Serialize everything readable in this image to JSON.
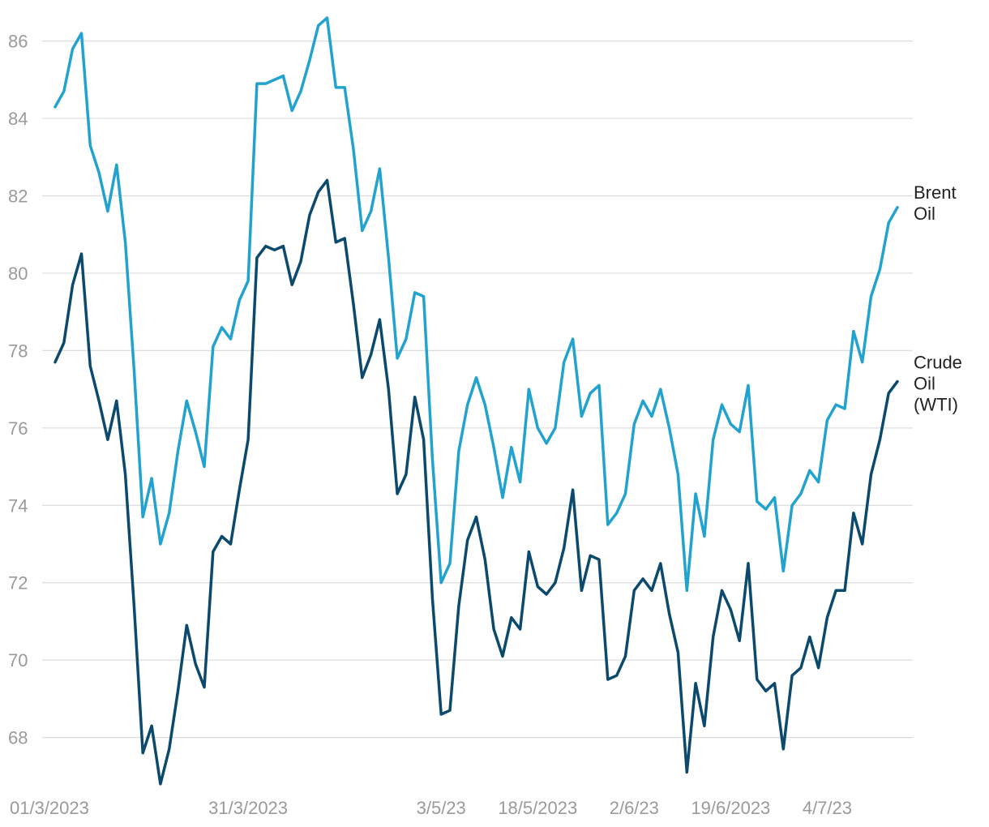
{
  "chart_data": {
    "type": "line",
    "title": "",
    "xlabel": "",
    "ylabel": "",
    "ylim": [
      66.8,
      86.8
    ],
    "yticks": [
      68,
      70,
      72,
      74,
      76,
      78,
      80,
      82,
      84,
      86
    ],
    "grid": "horizontal",
    "legend": "inline-right",
    "x_ticks": [
      {
        "index": 0,
        "label": "01/3/2023"
      },
      {
        "index": 22,
        "label": "31/3/2023"
      },
      {
        "index": 44,
        "label": "3/5/23"
      },
      {
        "index": 55,
        "label": "18/5/2023"
      },
      {
        "index": 66,
        "label": "2/6/23"
      },
      {
        "index": 77,
        "label": "19/6/2023"
      },
      {
        "index": 88,
        "label": "4/7/23"
      }
    ],
    "series": [
      {
        "name": "Brent Oil",
        "label_lines": [
          "Brent",
          "Oil"
        ],
        "color": "#22a3cf",
        "values": [
          84.3,
          84.7,
          85.8,
          86.2,
          83.3,
          82.6,
          81.6,
          82.8,
          80.8,
          77.5,
          73.7,
          74.7,
          73.0,
          73.8,
          75.4,
          76.7,
          75.9,
          75.0,
          78.1,
          78.6,
          78.3,
          79.3,
          79.8,
          84.9,
          84.9,
          85.0,
          85.1,
          84.2,
          84.7,
          85.5,
          86.4,
          86.6,
          84.8,
          84.8,
          83.2,
          81.1,
          81.6,
          82.7,
          80.4,
          77.8,
          78.3,
          79.5,
          79.4,
          75.2,
          72.0,
          72.5,
          75.4,
          76.6,
          77.3,
          76.6,
          75.5,
          74.2,
          75.5,
          74.6,
          77.0,
          76.0,
          75.6,
          76.0,
          77.7,
          78.3,
          76.3,
          76.9,
          77.1,
          73.5,
          73.8,
          74.3,
          76.1,
          76.7,
          76.3,
          77.0,
          76.0,
          74.8,
          71.8,
          74.3,
          73.2,
          75.7,
          76.6,
          76.1,
          75.9,
          77.1,
          74.1,
          73.9,
          74.2,
          72.3,
          74.0,
          74.3,
          74.9,
          74.6,
          76.2,
          76.6,
          76.5,
          78.5,
          77.7,
          79.4,
          80.1,
          81.3,
          81.7
        ]
      },
      {
        "name": "Crude Oil (WTI)",
        "label_lines": [
          "Crude",
          "Oil",
          "(WTI)"
        ],
        "color": "#0b4a6c",
        "values": [
          77.7,
          78.2,
          79.7,
          80.5,
          77.6,
          76.7,
          75.7,
          76.7,
          74.8,
          71.4,
          67.6,
          68.3,
          66.8,
          67.7,
          69.2,
          70.9,
          69.9,
          69.3,
          72.8,
          73.2,
          73.0,
          74.4,
          75.7,
          80.4,
          80.7,
          80.6,
          80.7,
          79.7,
          80.3,
          81.5,
          82.1,
          82.4,
          80.8,
          80.9,
          79.2,
          77.3,
          77.9,
          78.8,
          77.0,
          74.3,
          74.8,
          76.8,
          75.7,
          71.6,
          68.6,
          68.7,
          71.4,
          73.1,
          73.7,
          72.6,
          70.8,
          70.1,
          71.1,
          70.8,
          72.8,
          71.9,
          71.7,
          72.0,
          72.9,
          74.4,
          71.8,
          72.7,
          72.6,
          69.5,
          69.6,
          70.1,
          71.8,
          72.1,
          71.8,
          72.5,
          71.2,
          70.2,
          67.1,
          69.4,
          68.3,
          70.6,
          71.8,
          71.3,
          70.5,
          72.5,
          69.5,
          69.2,
          69.4,
          67.7,
          69.6,
          69.8,
          70.6,
          69.8,
          71.1,
          71.8,
          71.8,
          73.8,
          73.0,
          74.8,
          75.7,
          76.9,
          77.2
        ]
      }
    ]
  }
}
